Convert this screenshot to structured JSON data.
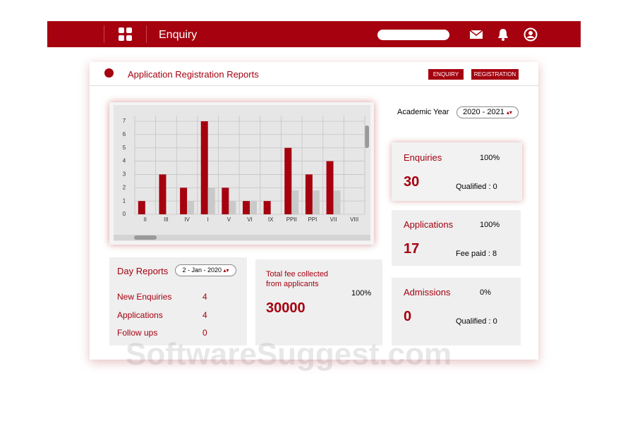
{
  "topbar": {
    "title": "Enquiry"
  },
  "panel": {
    "title": "Application Registration Reports",
    "buttons": [
      "ENQUIRY",
      "REGISTRATION"
    ]
  },
  "chart_data": {
    "type": "bar",
    "categories": [
      "II",
      "III",
      "IV",
      "I",
      "V",
      "VI",
      "IX",
      "PPII",
      "PPI",
      "VII",
      "VIII"
    ],
    "series": [
      {
        "color": "#a5010f",
        "values": [
          1,
          3,
          2,
          7,
          2,
          1,
          1,
          5,
          3,
          4,
          0
        ]
      },
      {
        "color": "#c9c9c9",
        "values": [
          0,
          0,
          1,
          2,
          1,
          1,
          0,
          1.8,
          1.8,
          1.8,
          0
        ]
      }
    ],
    "ylim": [
      0,
      7
    ],
    "yticks": [
      0,
      1,
      2,
      3,
      4,
      5,
      6,
      7
    ],
    "grid": true
  },
  "academic_year": {
    "label": "Academic Year",
    "value": "2020 - 2021"
  },
  "stats": [
    {
      "title": "Enquiries",
      "percent": "100%",
      "count": 30,
      "note": "Qualified : 0"
    },
    {
      "title": "Applications",
      "percent": "100%",
      "count": 17,
      "note": "Fee paid : 8"
    },
    {
      "title": "Admissions",
      "percent": "0%",
      "count": 0,
      "note": "Qualified : 0"
    }
  ],
  "day_reports": {
    "title": "Day Reports",
    "date": "2 - Jan - 2020",
    "rows": [
      [
        "New Enquiries",
        4
      ],
      [
        "Applications",
        4
      ],
      [
        "Follow ups",
        0
      ]
    ]
  },
  "fee": {
    "label": "Total fee collected from applicants",
    "percent": "100%",
    "amount": 30000
  },
  "watermark": "SoftwareSuggest.com"
}
